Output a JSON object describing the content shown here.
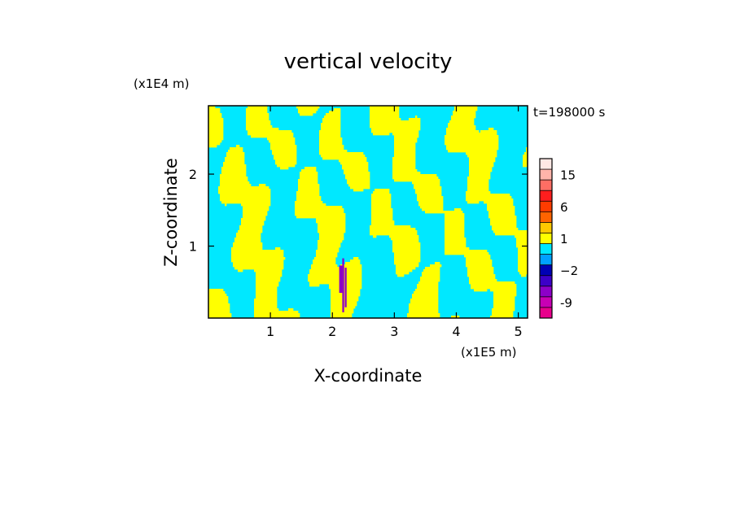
{
  "chart_data": {
    "type": "heatmap",
    "title": "vertical velocity",
    "xlabel": "X-coordinate",
    "ylabel": "Z-coordinate",
    "x_scale_label": "(x1E5 m)",
    "y_scale_label": "(x1E4 m)",
    "time_label": "t=198000 s",
    "xlim": [
      0,
      5.15
    ],
    "ylim": [
      0,
      2.95
    ],
    "x_ticks": [
      {
        "value": 1,
        "label": "1"
      },
      {
        "value": 2,
        "label": "2"
      },
      {
        "value": 3,
        "label": "3"
      },
      {
        "value": 4,
        "label": "4"
      },
      {
        "value": 5,
        "label": "5"
      }
    ],
    "y_ticks": [
      {
        "value": 1,
        "label": "1"
      },
      {
        "value": 2,
        "label": "2"
      }
    ],
    "grid": false,
    "field_colors": {
      "positive": "#ffff00",
      "negative": "#00e8ff",
      "strong_negative": "#8c00c8"
    },
    "colorbar": {
      "levels": [
        -12,
        -9,
        -6,
        -4,
        -2,
        -1,
        0,
        1,
        2,
        4,
        6,
        9,
        12,
        15,
        18,
        21
      ],
      "colors": [
        "#e8008c",
        "#c800b4",
        "#8c00c8",
        "#3c00c8",
        "#0000b4",
        "#00a0ff",
        "#00e8ff",
        "#ffff00",
        "#ffc800",
        "#ff6400",
        "#ff3c00",
        "#ff1e1e",
        "#ff6e64",
        "#ffb4aa",
        "#ffe8e4"
      ],
      "labels": [
        {
          "level": -9,
          "text": "-9"
        },
        {
          "level": -2,
          "text": "−2"
        },
        {
          "level": 1,
          "text": "1"
        },
        {
          "level": 6,
          "text": "6"
        },
        {
          "level": 15,
          "text": "15"
        }
      ]
    }
  }
}
